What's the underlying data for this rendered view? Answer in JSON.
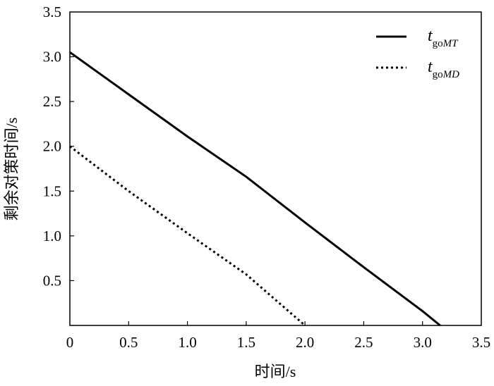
{
  "chart_data": {
    "type": "line",
    "title": "",
    "xlabel": "时间/s",
    "ylabel": "剩余对策时间/s",
    "xlim": [
      0,
      3.5
    ],
    "ylim": [
      0,
      3.5
    ],
    "x_ticks": [
      "0",
      "0.5",
      "1.0",
      "1.5",
      "2.0",
      "2.5",
      "3.0",
      "3.5"
    ],
    "y_ticks": [
      "0.5",
      "1.0",
      "1.5",
      "2.0",
      "2.5",
      "3.0",
      "3.5"
    ],
    "grid": false,
    "legend_position": "top-right",
    "series": [
      {
        "name": "t_goMT",
        "label_main": "t",
        "label_sub": "go",
        "label_sub_italic": "MT",
        "style": "solid",
        "color": "#000000",
        "x": [
          0,
          0.5,
          1.0,
          1.5,
          2.0,
          2.5,
          3.0,
          3.15
        ],
        "y": [
          3.05,
          2.58,
          2.11,
          1.66,
          1.15,
          0.65,
          0.16,
          0
        ]
      },
      {
        "name": "t_goMD",
        "label_main": "t",
        "label_sub": "go",
        "label_sub_italic": "MD",
        "style": "dotted",
        "color": "#000000",
        "x": [
          0,
          0.5,
          1.0,
          1.5,
          2.0
        ],
        "y": [
          2.0,
          1.5,
          1.03,
          0.57,
          0
        ]
      }
    ]
  }
}
